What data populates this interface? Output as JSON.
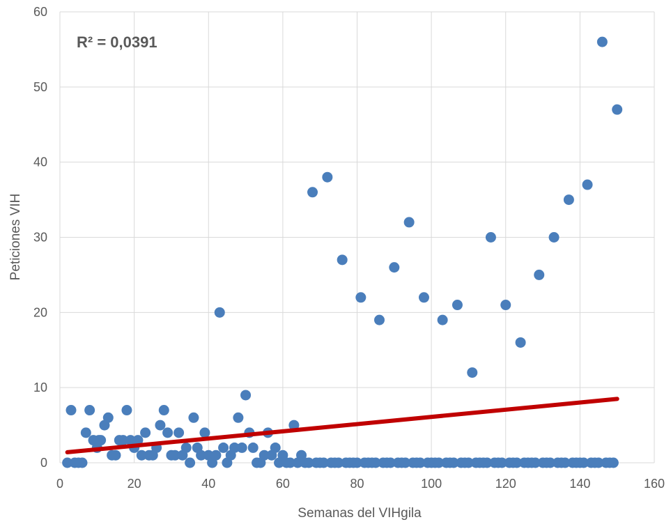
{
  "chart_data": {
    "type": "scatter",
    "title": "",
    "xlabel": "Semanas del VIHgila",
    "ylabel": "Peticiones VIH",
    "xlim": [
      0,
      160
    ],
    "ylim": [
      0,
      60
    ],
    "xticks": [
      0,
      20,
      40,
      60,
      80,
      100,
      120,
      140,
      160
    ],
    "yticks": [
      0,
      10,
      20,
      30,
      40,
      50,
      60
    ],
    "grid": true,
    "legend": "none",
    "annotation": "R² = 0,0391",
    "colors": {
      "points": "#4a7ebb",
      "trendline": "#c00000",
      "grid": "#d9d9d9"
    },
    "trendline": {
      "x": [
        2,
        150
      ],
      "y": [
        1.4,
        8.5
      ]
    },
    "points": [
      [
        2,
        0
      ],
      [
        3,
        7
      ],
      [
        4,
        0
      ],
      [
        5,
        0
      ],
      [
        6,
        0
      ],
      [
        7,
        4
      ],
      [
        8,
        7
      ],
      [
        9,
        3
      ],
      [
        10,
        2
      ],
      [
        10.5,
        3
      ],
      [
        11,
        3
      ],
      [
        12,
        5
      ],
      [
        13,
        6
      ],
      [
        14,
        1
      ],
      [
        15,
        1
      ],
      [
        16,
        3
      ],
      [
        17,
        3
      ],
      [
        18,
        7
      ],
      [
        19,
        3
      ],
      [
        20,
        2
      ],
      [
        21,
        3
      ],
      [
        22,
        1
      ],
      [
        23,
        4
      ],
      [
        24,
        1
      ],
      [
        25,
        1
      ],
      [
        26,
        2
      ],
      [
        27,
        5
      ],
      [
        28,
        7
      ],
      [
        29,
        4
      ],
      [
        30,
        1
      ],
      [
        31,
        1
      ],
      [
        32,
        4
      ],
      [
        33,
        1
      ],
      [
        34,
        2
      ],
      [
        35,
        0
      ],
      [
        36,
        6
      ],
      [
        37,
        2
      ],
      [
        38,
        1
      ],
      [
        39,
        4
      ],
      [
        40,
        1
      ],
      [
        41,
        0
      ],
      [
        42,
        1
      ],
      [
        43,
        20
      ],
      [
        44,
        2
      ],
      [
        45,
        0
      ],
      [
        46,
        1
      ],
      [
        47,
        2
      ],
      [
        48,
        6
      ],
      [
        49,
        2
      ],
      [
        50,
        9
      ],
      [
        51,
        4
      ],
      [
        52,
        2
      ],
      [
        53,
        0
      ],
      [
        54,
        0
      ],
      [
        55,
        1
      ],
      [
        56,
        4
      ],
      [
        57,
        1
      ],
      [
        58,
        2
      ],
      [
        59,
        0
      ],
      [
        60,
        1
      ],
      [
        61,
        0
      ],
      [
        62,
        0
      ],
      [
        63,
        5
      ],
      [
        64,
        0
      ],
      [
        65,
        1
      ],
      [
        66,
        0
      ],
      [
        67,
        0
      ],
      [
        68,
        36
      ],
      [
        69,
        0
      ],
      [
        70,
        0
      ],
      [
        71,
        0
      ],
      [
        72,
        38
      ],
      [
        73,
        0
      ],
      [
        74,
        0
      ],
      [
        75,
        0
      ],
      [
        76,
        27
      ],
      [
        77,
        0
      ],
      [
        78,
        0
      ],
      [
        79,
        0
      ],
      [
        80,
        0
      ],
      [
        81,
        22
      ],
      [
        82,
        0
      ],
      [
        83,
        0
      ],
      [
        84,
        0
      ],
      [
        85,
        0
      ],
      [
        86,
        19
      ],
      [
        87,
        0
      ],
      [
        88,
        0
      ],
      [
        89,
        0
      ],
      [
        90,
        26
      ],
      [
        91,
        0
      ],
      [
        92,
        0
      ],
      [
        93,
        0
      ],
      [
        94,
        32
      ],
      [
        95,
        0
      ],
      [
        96,
        0
      ],
      [
        97,
        0
      ],
      [
        98,
        22
      ],
      [
        99,
        0
      ],
      [
        100,
        0
      ],
      [
        101,
        0
      ],
      [
        102,
        0
      ],
      [
        103,
        19
      ],
      [
        104,
        0
      ],
      [
        105,
        0
      ],
      [
        106,
        0
      ],
      [
        107,
        21
      ],
      [
        108,
        0
      ],
      [
        109,
        0
      ],
      [
        110,
        0
      ],
      [
        111,
        12
      ],
      [
        112,
        0
      ],
      [
        113,
        0
      ],
      [
        114,
        0
      ],
      [
        115,
        0
      ],
      [
        116,
        30
      ],
      [
        117,
        0
      ],
      [
        118,
        0
      ],
      [
        119,
        0
      ],
      [
        120,
        21
      ],
      [
        121,
        0
      ],
      [
        122,
        0
      ],
      [
        123,
        0
      ],
      [
        124,
        16
      ],
      [
        125,
        0
      ],
      [
        126,
        0
      ],
      [
        127,
        0
      ],
      [
        128,
        0
      ],
      [
        129,
        25
      ],
      [
        130,
        0
      ],
      [
        131,
        0
      ],
      [
        132,
        0
      ],
      [
        133,
        30
      ],
      [
        134,
        0
      ],
      [
        135,
        0
      ],
      [
        136,
        0
      ],
      [
        137,
        35
      ],
      [
        138,
        0
      ],
      [
        139,
        0
      ],
      [
        140,
        0
      ],
      [
        141,
        0
      ],
      [
        142,
        37
      ],
      [
        143,
        0
      ],
      [
        144,
        0
      ],
      [
        145,
        0
      ],
      [
        146,
        56
      ],
      [
        147,
        0
      ],
      [
        148,
        0
      ],
      [
        149,
        0
      ],
      [
        150,
        47
      ]
    ]
  }
}
